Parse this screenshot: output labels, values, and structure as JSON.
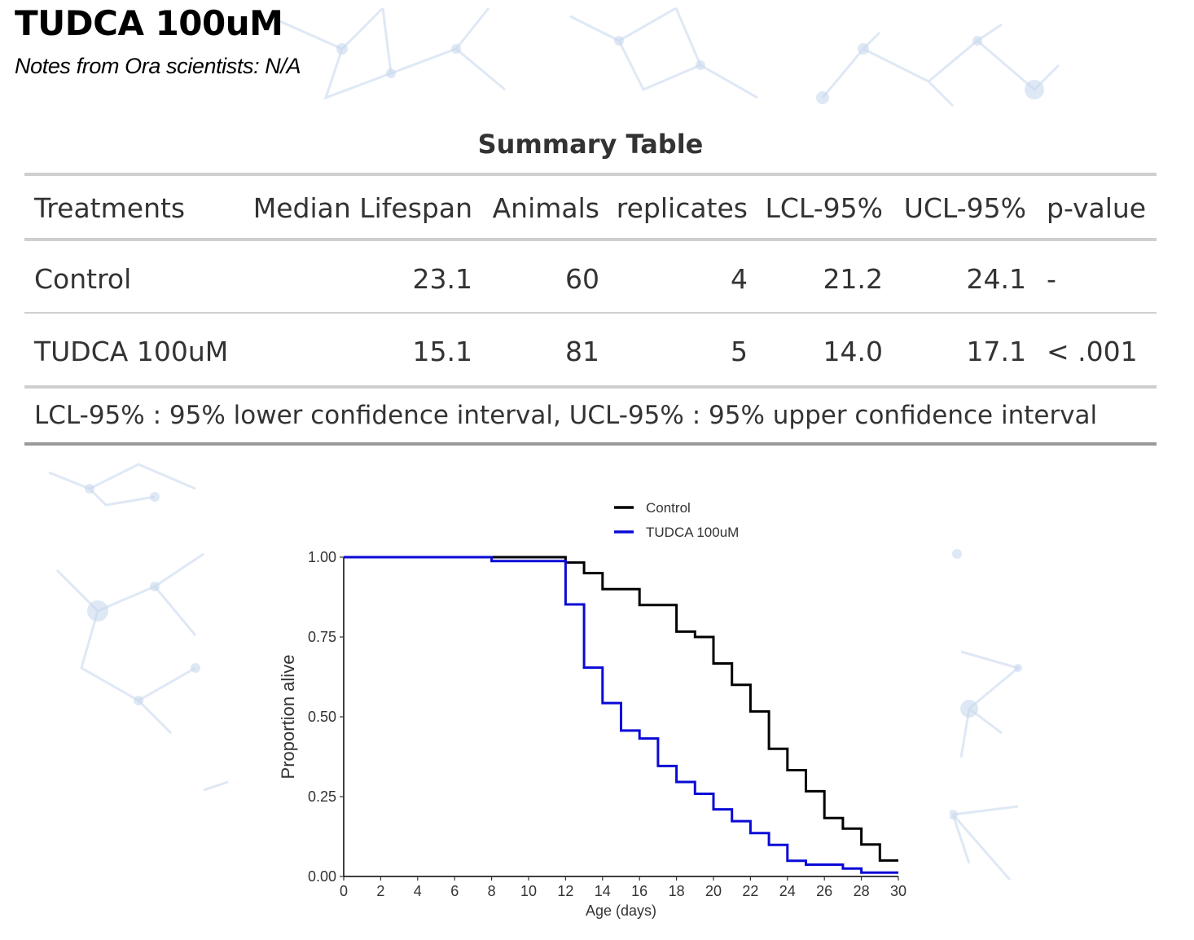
{
  "page": {
    "title": "TUDCA 100uM",
    "notes": "Notes from Ora scientists: N/A"
  },
  "summary_table": {
    "title": "Summary Table",
    "headers": [
      "Treatments",
      "Median Lifespan",
      "Animals",
      "replicates",
      "LCL-95%",
      "UCL-95%",
      "p-value"
    ],
    "rows": [
      [
        "Control",
        "23.1",
        "60",
        "4",
        "21.2",
        "24.1",
        "-"
      ],
      [
        "TUDCA 100uM",
        "15.1",
        "81",
        "5",
        "14.0",
        "17.1",
        "< .001"
      ]
    ],
    "footnote": "LCL-95% : 95% lower confidence interval, UCL-95% : 95% upper confidence interval"
  },
  "chart_data": {
    "type": "line",
    "step": true,
    "title": "",
    "xlabel": "Age (days)",
    "ylabel": "Proportion alive",
    "xlim": [
      0,
      30
    ],
    "ylim": [
      0,
      1
    ],
    "xticks": [
      "0",
      "2",
      "4",
      "6",
      "8",
      "10",
      "12",
      "14",
      "16",
      "18",
      "20",
      "22",
      "24",
      "26",
      "28",
      "30"
    ],
    "yticks": [
      "0.00",
      "0.25",
      "0.50",
      "0.75",
      "1.00"
    ],
    "legend_position": "top",
    "series": [
      {
        "name": "Control",
        "color": "#000000",
        "points": [
          [
            0,
            1.0
          ],
          [
            12,
            0.983
          ],
          [
            13,
            0.95
          ],
          [
            14,
            0.9
          ],
          [
            16,
            0.85
          ],
          [
            18,
            0.767
          ],
          [
            19,
            0.75
          ],
          [
            20,
            0.667
          ],
          [
            21,
            0.6
          ],
          [
            22,
            0.517
          ],
          [
            23,
            0.4
          ],
          [
            24,
            0.333
          ],
          [
            25,
            0.267
          ],
          [
            26,
            0.183
          ],
          [
            27,
            0.15
          ],
          [
            28,
            0.1
          ],
          [
            29,
            0.05
          ],
          [
            30,
            0.05
          ]
        ]
      },
      {
        "name": "TUDCA 100uM",
        "color": "#0a0ad6",
        "points": [
          [
            0,
            1.0
          ],
          [
            8,
            0.988
          ],
          [
            12,
            0.852
          ],
          [
            13,
            0.654
          ],
          [
            14,
            0.543
          ],
          [
            15,
            0.457
          ],
          [
            16,
            0.432
          ],
          [
            17,
            0.346
          ],
          [
            18,
            0.296
          ],
          [
            19,
            0.259
          ],
          [
            20,
            0.21
          ],
          [
            21,
            0.173
          ],
          [
            22,
            0.136
          ],
          [
            23,
            0.099
          ],
          [
            24,
            0.049
          ],
          [
            25,
            0.037
          ],
          [
            27,
            0.025
          ],
          [
            28,
            0.012
          ],
          [
            30,
            0.012
          ]
        ]
      }
    ]
  }
}
